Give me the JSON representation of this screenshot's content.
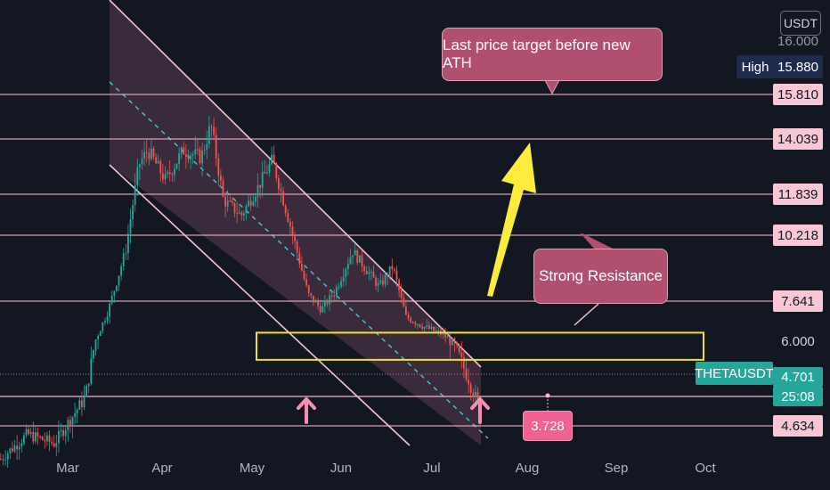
{
  "header": {
    "unit": "USDT"
  },
  "chart_data": {
    "type": "candlestick",
    "symbol": "THETAUSDT",
    "currency": "USDT",
    "x_axis_labels": [
      "Mar",
      "Apr",
      "May",
      "Jun",
      "Jul",
      "Aug",
      "Sep",
      "Oct"
    ],
    "price_levels": [
      15.81,
      14.039,
      11.839,
      10.218,
      7.641,
      4.634
    ],
    "price_level_labels": [
      "15.810",
      "14.039",
      "11.839",
      "10.218",
      "7.641",
      "4.634"
    ],
    "axis_ticks": [
      "16.000",
      "6.000"
    ],
    "high": {
      "label": "High",
      "value": "15.880"
    },
    "current": {
      "symbol": "THETAUSDT",
      "price": "4.701",
      "countdown": "25:08"
    },
    "target_marker": {
      "value": "3.728"
    },
    "resistance_zone": {
      "low": 5.7,
      "high": 6.35
    },
    "annotations": [
      {
        "text": "Last price target before new ATH"
      },
      {
        "text": "Strong Resistance"
      }
    ],
    "colors": {
      "background": "#131722",
      "up": "#26a69a",
      "down": "#ef5350",
      "level_line": "#f3b6c9",
      "channel_fill": "#5a3c50",
      "zone": "#f0e130",
      "arrow_yellow": "#ffeb3b",
      "arrow_pink": "#f48fb1",
      "callout": "#b0506e",
      "current_tag": "#26a69a"
    }
  }
}
